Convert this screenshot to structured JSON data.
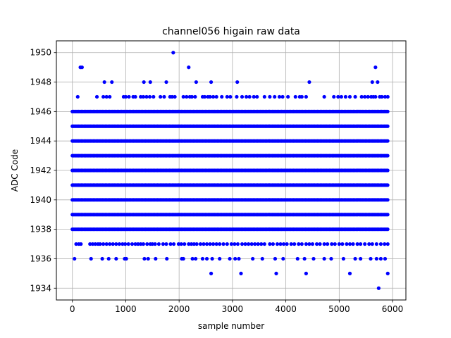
{
  "chart_data": {
    "type": "scatter",
    "title": "channel056 higain raw data",
    "xlabel": "sample number",
    "ylabel": "ADC Code",
    "xlim": [
      -300,
      6250
    ],
    "ylim": [
      1933.2,
      1950.8
    ],
    "xticks": [
      0,
      1000,
      2000,
      3000,
      4000,
      5000,
      6000
    ],
    "yticks": [
      1934,
      1936,
      1938,
      1940,
      1942,
      1944,
      1946,
      1948,
      1950
    ],
    "grid": true,
    "marker_color": "#0000ff",
    "x_range": [
      0,
      5920
    ],
    "levels": [
      {
        "y": 1934,
        "x": [
          5740
        ]
      },
      {
        "y": 1935,
        "x": [
          2600,
          3160,
          3820,
          4380,
          5200,
          5910
        ]
      },
      {
        "y": 1936,
        "x": [
          40,
          350,
          560,
          680,
          820,
          980,
          1010,
          1350,
          1420,
          1560,
          1770,
          2050,
          2080,
          2250,
          2310,
          2440,
          2520,
          2620,
          2760,
          2950,
          3050,
          3120,
          3380,
          3560,
          3800,
          3950,
          4220,
          4350,
          4520,
          4720,
          4850,
          5080,
          5300,
          5400,
          5590,
          5700,
          5780,
          5860
        ]
      },
      {
        "y": 1937,
        "x": [
          70,
          120,
          160,
          330,
          380,
          430,
          480,
          520,
          580,
          640,
          700,
          760,
          820,
          880,
          940,
          990,
          1050,
          1120,
          1180,
          1230,
          1280,
          1330,
          1400,
          1460,
          1500,
          1550,
          1620,
          1700,
          1760,
          1840,
          1900,
          1990,
          2040,
          2100,
          2180,
          2230,
          2280,
          2330,
          2400,
          2460,
          2520,
          2580,
          2640,
          2700,
          2760,
          2830,
          2900,
          2980,
          3040,
          3100,
          3180,
          3240,
          3300,
          3360,
          3420,
          3480,
          3540,
          3600,
          3700,
          3760,
          3840,
          3900,
          3960,
          4020,
          4100,
          4160,
          4240,
          4300,
          4380,
          4440,
          4500,
          4580,
          4640,
          4720,
          4780,
          4860,
          4920,
          5000,
          5060,
          5140,
          5200,
          5260,
          5340,
          5400,
          5480,
          5560,
          5620,
          5700,
          5780,
          5850,
          5910
        ]
      }
    ],
    "dense_levels": [
      1938,
      1939,
      1940,
      1941,
      1942,
      1943,
      1944,
      1945,
      1946
    ],
    "upper_levels": [
      {
        "y": 1947,
        "x": [
          100,
          460,
          580,
          640,
          700,
          960,
          1000,
          1060,
          1140,
          1180,
          1280,
          1330,
          1390,
          1450,
          1520,
          1650,
          1720,
          1830,
          1870,
          1920,
          2080,
          2140,
          2200,
          2240,
          2300,
          2440,
          2480,
          2540,
          2580,
          2640,
          2700,
          2800,
          2900,
          2960,
          3080,
          3180,
          3260,
          3320,
          3400,
          3460,
          3600,
          3700,
          3790,
          3880,
          3940,
          4040,
          4180,
          4260,
          4300,
          4380,
          4720,
          4900,
          4980,
          5040,
          5120,
          5200,
          5300,
          5420,
          5480,
          5540,
          5600,
          5640,
          5680,
          5760,
          5800,
          5860,
          5910
        ]
      },
      {
        "y": 1948,
        "x": [
          600,
          740,
          1340,
          1460,
          1760,
          2320,
          2600,
          3090,
          4440,
          5620,
          5720
        ]
      },
      {
        "y": 1949,
        "x": [
          150,
          180,
          2180,
          5680
        ]
      },
      {
        "y": 1950,
        "x": [
          1890
        ]
      }
    ]
  }
}
